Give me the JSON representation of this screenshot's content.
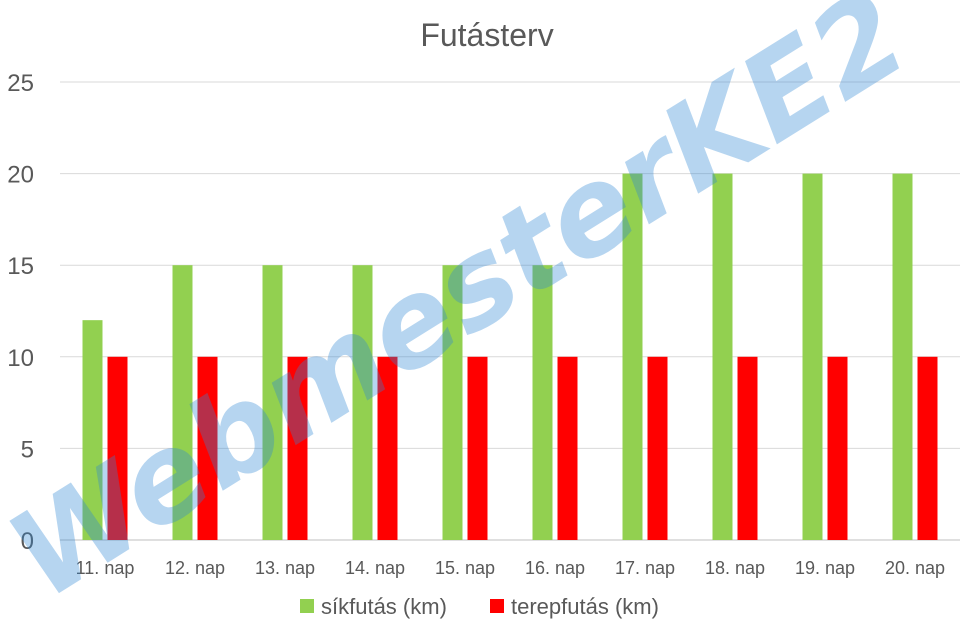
{
  "chart_data": {
    "type": "bar",
    "title": "Futásterv",
    "categories": [
      "11. nap",
      "12. nap",
      "13. nap",
      "14. nap",
      "15. nap",
      "16. nap",
      "17. nap",
      "18. nap",
      "19. nap",
      "20. nap"
    ],
    "series": [
      {
        "name": "síkfutás (km)",
        "color": "#92d050",
        "values": [
          12,
          15,
          15,
          15,
          15,
          15,
          20,
          20,
          20,
          20
        ]
      },
      {
        "name": "terepfutás (km)",
        "color": "#ff0000",
        "values": [
          10,
          10,
          10,
          10,
          10,
          10,
          10,
          10,
          10,
          10
        ]
      }
    ],
    "ylim": [
      0,
      25
    ],
    "yticks": [
      0,
      5,
      10,
      15,
      20,
      25
    ],
    "grid": true,
    "legend": "bottom"
  },
  "watermark": "WebmesterKE2"
}
